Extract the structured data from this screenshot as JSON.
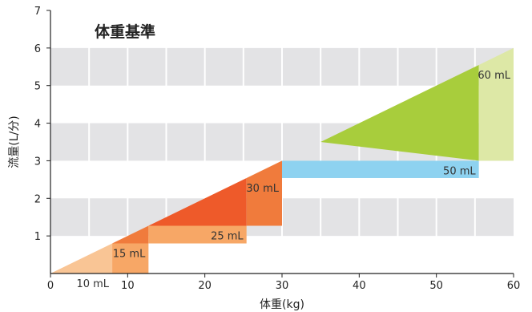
{
  "chart_data": {
    "type": "area",
    "title": "体重基準",
    "xlabel": "体重(kg)",
    "ylabel": "流量(L/分)",
    "xlim": [
      0,
      60
    ],
    "ylim": [
      0,
      7
    ],
    "xticks": [
      0,
      10,
      20,
      30,
      40,
      50,
      60
    ],
    "yticks": [
      1,
      2,
      3,
      4,
      5,
      6,
      7
    ],
    "grid": true,
    "reference_line": {
      "x": [
        0,
        60
      ],
      "y": [
        0,
        6
      ]
    },
    "regions": [
      {
        "label": "10 mL",
        "x_range": [
          0,
          8
        ],
        "color": "#F9C595",
        "tri_color": "#F9C595"
      },
      {
        "label": "15 mL",
        "x_range": [
          8,
          12.7
        ],
        "color": "#F7A766",
        "tri_color": "#F07B3C"
      },
      {
        "label": "25 mL",
        "x_range": [
          12.7,
          25.4
        ],
        "color": "#F7A766",
        "tri_color": "#EE5A2A"
      },
      {
        "label": "30 mL",
        "x_range": [
          25.4,
          30
        ],
        "color": "#F07B3C",
        "tri_color": "#F07B3C"
      },
      {
        "label": "50 mL",
        "x_range": [
          30,
          55.5
        ],
        "color": "#8ED2F0",
        "tri_color": "#A8CD3C",
        "tri_start_x": 35
      },
      {
        "label": "60 mL",
        "x_range": [
          55.5,
          60
        ],
        "color": "#DDE8A6",
        "tri_color": "#DDE8A6"
      }
    ]
  }
}
